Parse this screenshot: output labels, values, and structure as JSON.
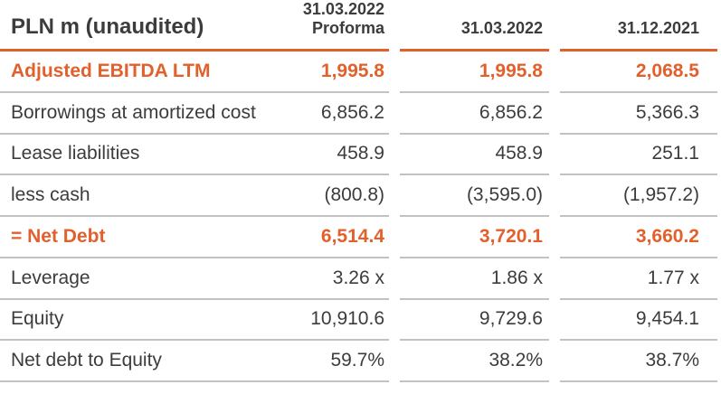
{
  "table": {
    "unit_label": "PLN m (unaudited)",
    "columns": [
      {
        "line1": "31.03.2022",
        "line2": "Proforma"
      },
      {
        "line1": "31.03.2022",
        "line2": ""
      },
      {
        "line1": "31.12.2021",
        "line2": ""
      }
    ],
    "rows": [
      {
        "label": "Adjusted EBITDA LTM",
        "values": [
          "1,995.8",
          "1,995.8",
          "2,068.5"
        ]
      },
      {
        "label": "Borrowings at amortized cost",
        "values": [
          "6,856.2",
          "6,856.2",
          "5,366.3"
        ]
      },
      {
        "label": "Lease liabilities",
        "values": [
          "458.9",
          "458.9",
          "251.1"
        ]
      },
      {
        "label": "less cash",
        "values": [
          "(800.8)",
          "(3,595.0)",
          "(1,957.2)"
        ]
      },
      {
        "label": "= Net Debt",
        "values": [
          "6,514.4",
          "3,720.1",
          "3,660.2"
        ]
      },
      {
        "label": "Leverage",
        "values": [
          "3.26 x",
          "1.86 x",
          "1.77 x"
        ]
      },
      {
        "label": "Equity",
        "values": [
          "10,910.6",
          "9,729.6",
          "9,454.1"
        ]
      },
      {
        "label": "Net debt to Equity",
        "values": [
          "59.7%",
          "38.2%",
          "38.7%"
        ]
      }
    ],
    "colors": {
      "accent_orange": "#E2602C",
      "text_dark": "#3C3C3B",
      "separator_gray": "#C2C2C2"
    }
  },
  "chart_data": {
    "type": "table",
    "title": "PLN m (unaudited)",
    "categories": [
      "31.03.2022 Proforma",
      "31.03.2022",
      "31.12.2021"
    ],
    "series": [
      {
        "name": "Adjusted EBITDA LTM",
        "values": [
          1995.8,
          1995.8,
          2068.5
        ]
      },
      {
        "name": "Borrowings at amortized cost",
        "values": [
          6856.2,
          6856.2,
          5366.3
        ]
      },
      {
        "name": "Lease liabilities",
        "values": [
          458.9,
          458.9,
          251.1
        ]
      },
      {
        "name": "less cash",
        "values": [
          -800.8,
          -3595.0,
          -1957.2
        ]
      },
      {
        "name": "= Net Debt",
        "values": [
          6514.4,
          3720.1,
          3660.2
        ]
      },
      {
        "name": "Leverage (x)",
        "values": [
          3.26,
          1.86,
          1.77
        ]
      },
      {
        "name": "Equity",
        "values": [
          10910.6,
          9729.6,
          9454.1
        ]
      },
      {
        "name": "Net debt to Equity (%)",
        "values": [
          59.7,
          38.2,
          38.7
        ]
      }
    ]
  }
}
